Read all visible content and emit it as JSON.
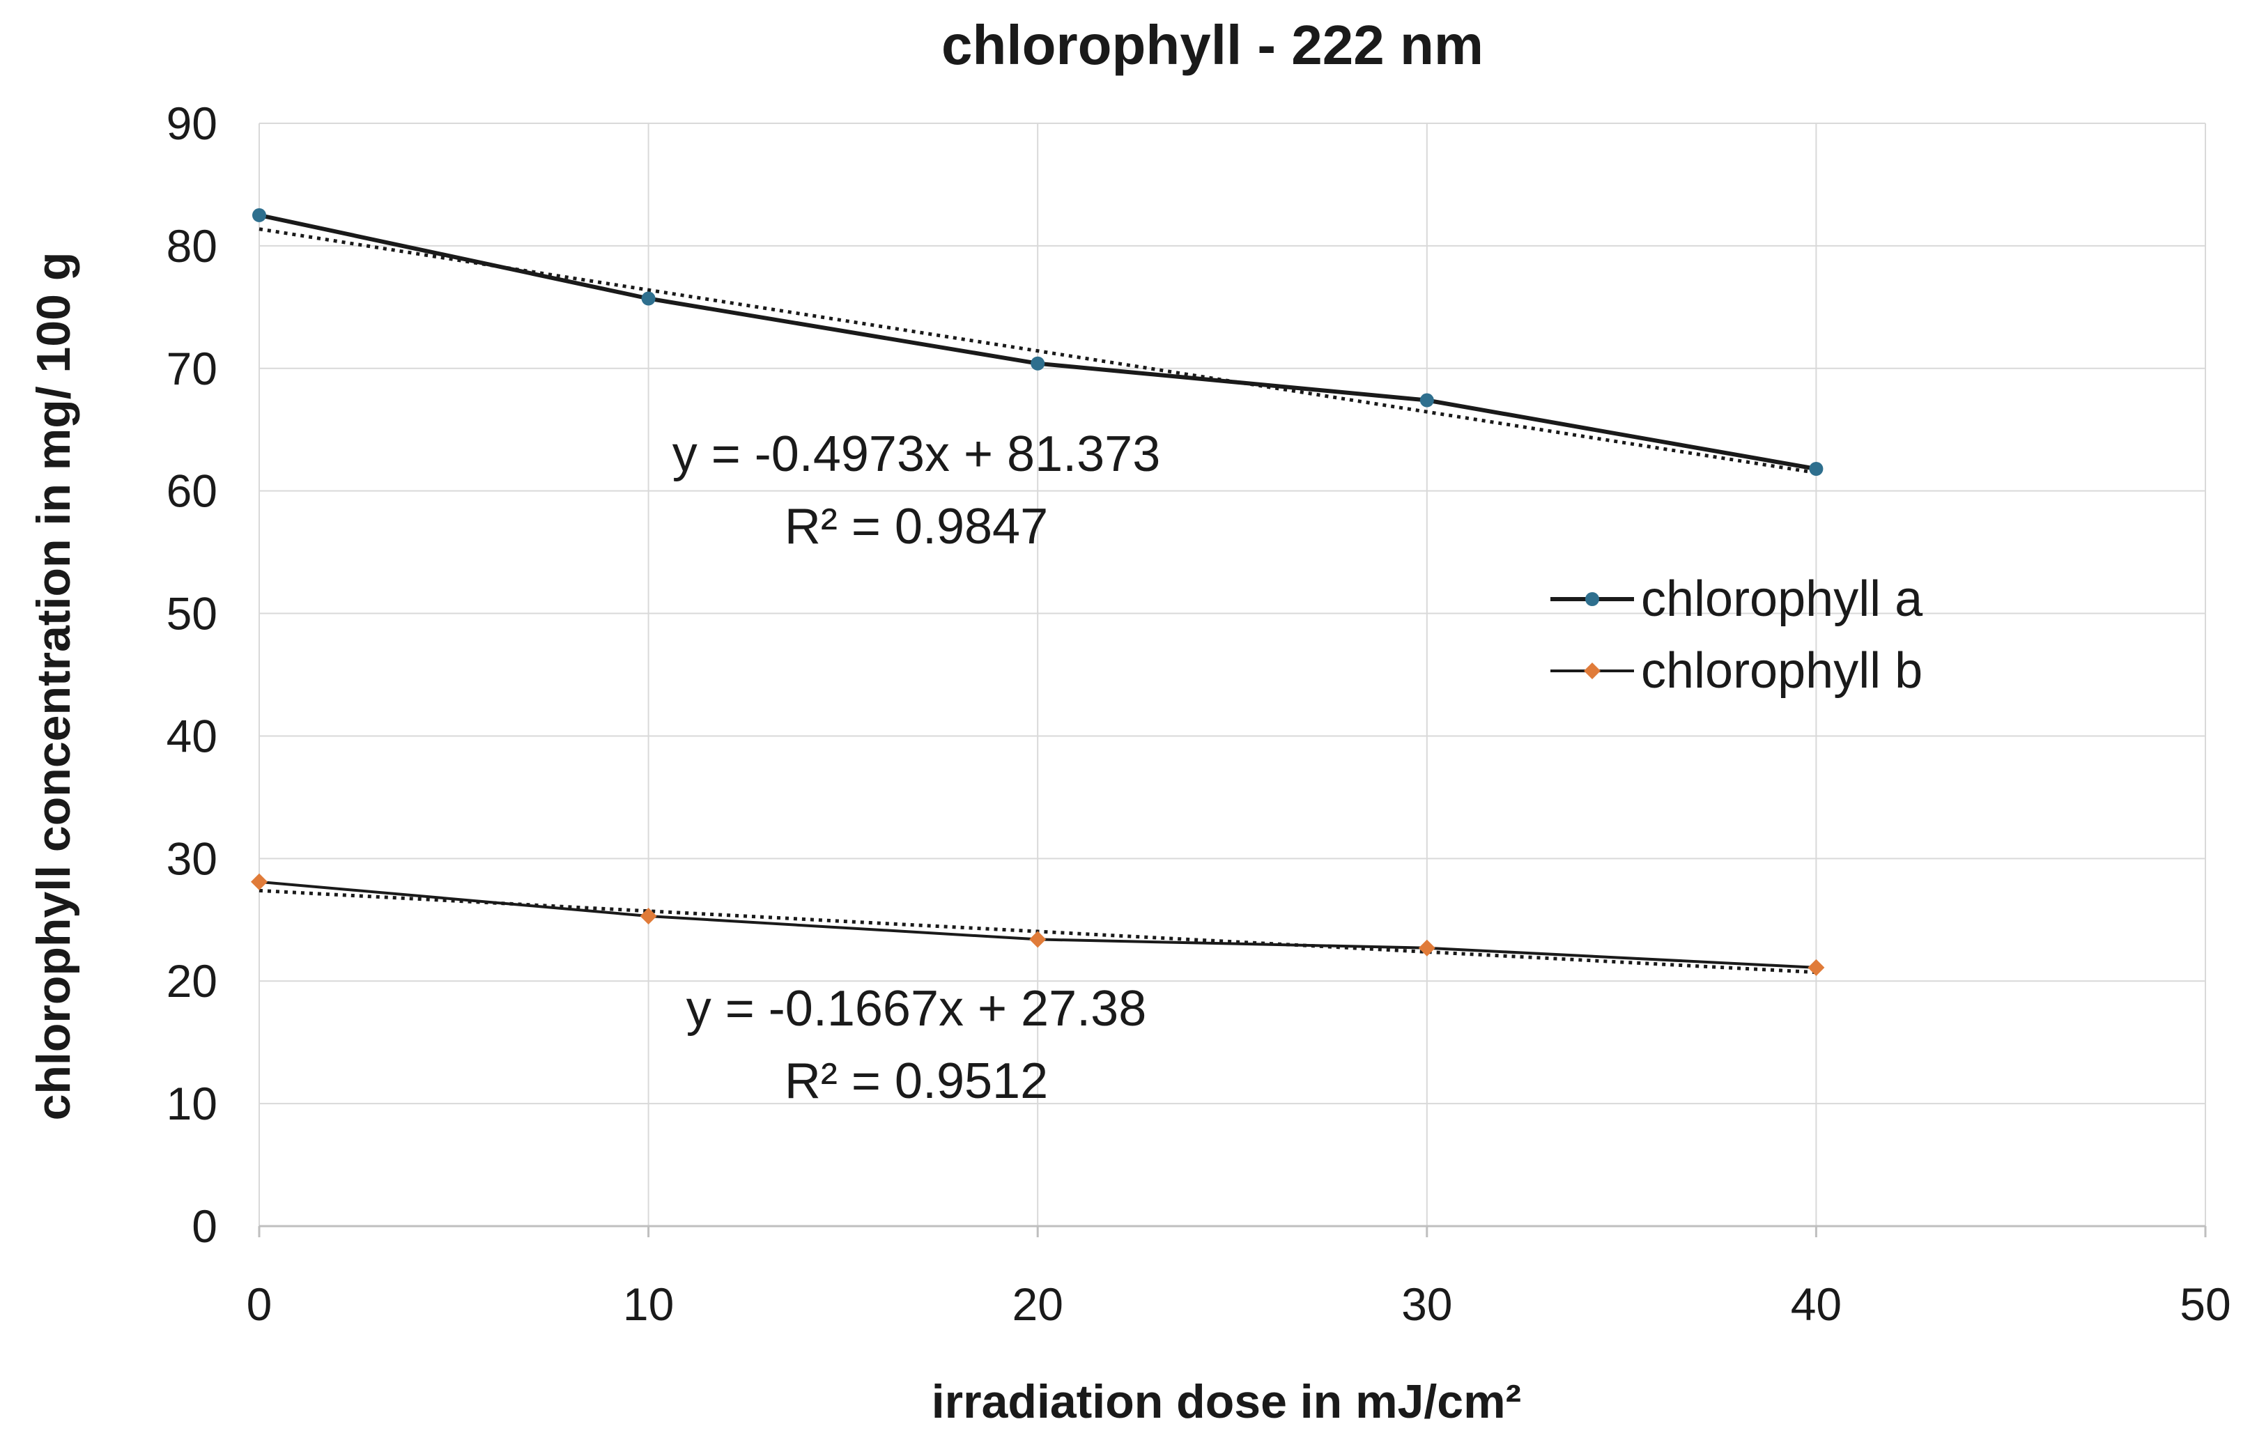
{
  "chart_data": {
    "type": "line",
    "title": "chlorophyll - 222 nm",
    "xlabel": "irradiation dose in mJ/cm²",
    "ylabel": "chlorophyll concentration in mg/ 100 g",
    "xlim": [
      0,
      50
    ],
    "ylim": [
      0,
      90
    ],
    "x_ticks": [
      0,
      10,
      20,
      30,
      40,
      50
    ],
    "y_ticks": [
      0,
      10,
      20,
      30,
      40,
      50,
      60,
      70,
      80,
      90
    ],
    "grid": true,
    "legend_position": "right",
    "series": [
      {
        "name": "chlorophyll a",
        "color": "#2e6f8e",
        "x": [
          0,
          10,
          20,
          30,
          40
        ],
        "y": [
          82.5,
          75.7,
          70.4,
          67.4,
          61.8
        ],
        "trendline": {
          "slope": -0.4973,
          "intercept": 81.373
        }
      },
      {
        "name": "chlorophyll b",
        "color": "#e07b39",
        "x": [
          0,
          10,
          20,
          30,
          40
        ],
        "y": [
          28.1,
          25.3,
          23.4,
          22.7,
          21.1
        ],
        "trendline": {
          "slope": -0.1667,
          "intercept": 27.38
        }
      }
    ],
    "annotations": [
      {
        "series": "chlorophyll a",
        "equation": "y = -0.4973x + 81.373",
        "r2": "R² = 0.9847"
      },
      {
        "series": "chlorophyll b",
        "equation": "y = -0.1667x + 27.38",
        "r2": "R² = 0.9512"
      }
    ]
  }
}
